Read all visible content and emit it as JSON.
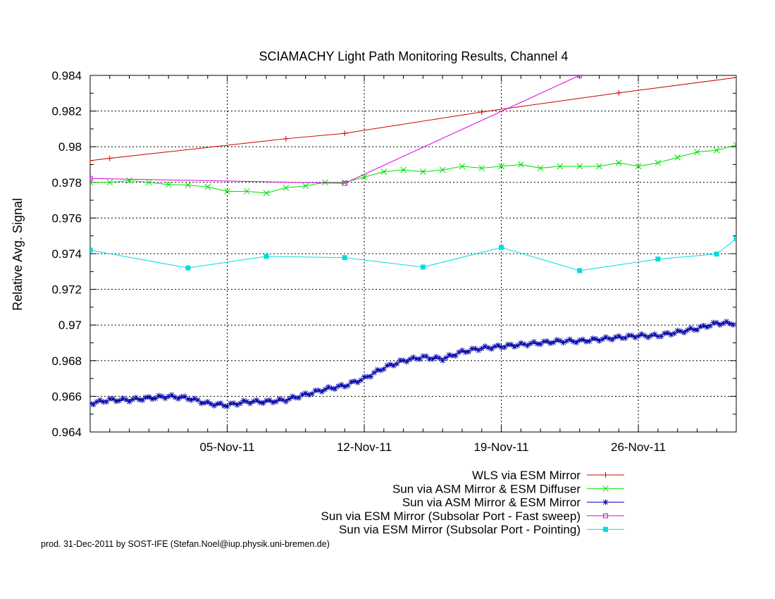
{
  "chart_data": {
    "type": "line",
    "title": "SCIAMACHY Light Path Monitoring Results, Channel 4",
    "ylabel": "Relative Avg. Signal",
    "xlabel": "",
    "x_axis": {
      "start": "2011-10-29",
      "end": "2011-12-01",
      "ticks": [
        {
          "date": "2011-11-05",
          "label": "05-Nov-11"
        },
        {
          "date": "2011-11-12",
          "label": "12-Nov-11"
        },
        {
          "date": "2011-11-19",
          "label": "19-Nov-11"
        },
        {
          "date": "2011-11-26",
          "label": "26-Nov-11"
        }
      ],
      "minor_ticks": [
        "2011-10-29",
        "2011-10-30",
        "2011-10-31",
        "2011-11-01",
        "2011-11-02",
        "2011-11-03",
        "2011-11-04",
        "2011-11-06",
        "2011-11-07",
        "2011-11-08",
        "2011-11-09",
        "2011-11-10",
        "2011-11-11",
        "2011-11-13",
        "2011-11-14",
        "2011-11-15",
        "2011-11-16",
        "2011-11-17",
        "2011-11-18",
        "2011-11-20",
        "2011-11-21",
        "2011-11-22",
        "2011-11-23",
        "2011-11-24",
        "2011-11-25",
        "2011-11-27",
        "2011-11-28",
        "2011-11-29",
        "2011-11-30"
      ]
    },
    "y_axis": {
      "min": 0.964,
      "max": 0.984,
      "ticks": [
        {
          "value": 0.964,
          "label": "0.964"
        },
        {
          "value": 0.966,
          "label": "0.966"
        },
        {
          "value": 0.968,
          "label": "0.968"
        },
        {
          "value": 0.97,
          "label": "0.97"
        },
        {
          "value": 0.972,
          "label": "0.972"
        },
        {
          "value": 0.974,
          "label": "0.974"
        },
        {
          "value": 0.976,
          "label": "0.976"
        },
        {
          "value": 0.978,
          "label": "0.978"
        },
        {
          "value": 0.98,
          "label": "0.98"
        },
        {
          "value": 0.982,
          "label": "0.982"
        },
        {
          "value": 0.984,
          "label": "0.984"
        }
      ],
      "minor_step": 0.001
    },
    "grid": true,
    "legend_position": "bottom-right",
    "series": [
      {
        "name": "WLS via ESM Mirror",
        "color": "#cc0000",
        "marker": "plus",
        "x": [
          "2011-10-29",
          "2011-10-30",
          "2011-11-08",
          "2011-11-11",
          "2011-11-18",
          "2011-11-25",
          "2011-12-01"
        ],
        "y": [
          0.97922,
          0.97935,
          0.98045,
          0.98075,
          0.98195,
          0.98302,
          0.98388
        ]
      },
      {
        "name": "Sun via ASM Mirror & ESM Diffuser",
        "color": "#00dd00",
        "marker": "cross",
        "x": [
          "2011-10-29",
          "2011-10-30",
          "2011-10-31",
          "2011-11-01",
          "2011-11-02",
          "2011-11-03",
          "2011-11-04",
          "2011-11-05",
          "2011-11-06",
          "2011-11-07",
          "2011-11-08",
          "2011-11-09",
          "2011-11-10",
          "2011-11-11",
          "2011-11-12",
          "2011-11-13",
          "2011-11-14",
          "2011-11-15",
          "2011-11-16",
          "2011-11-17",
          "2011-11-18",
          "2011-11-19",
          "2011-11-20",
          "2011-11-21",
          "2011-11-22",
          "2011-11-23",
          "2011-11-24",
          "2011-11-25",
          "2011-11-26",
          "2011-11-27",
          "2011-11-28",
          "2011-11-29",
          "2011-11-30",
          "2011-12-01"
        ],
        "y": [
          0.978,
          0.978,
          0.9781,
          0.978,
          0.97788,
          0.97785,
          0.97775,
          0.9775,
          0.9775,
          0.9774,
          0.9777,
          0.9778,
          0.978,
          0.978,
          0.9783,
          0.9786,
          0.9787,
          0.9786,
          0.9787,
          0.9789,
          0.9788,
          0.9789,
          0.979,
          0.9788,
          0.9789,
          0.9789,
          0.9789,
          0.9791,
          0.9789,
          0.9791,
          0.9794,
          0.9797,
          0.9798,
          0.9801
        ]
      },
      {
        "name": "Sun via ASM Mirror & ESM Mirror",
        "color": "#0000aa",
        "marker": "star",
        "x": [
          "2011-10-29",
          "2011-10-30",
          "2011-10-31",
          "2011-11-01",
          "2011-11-02",
          "2011-11-03",
          "2011-11-04",
          "2011-11-05",
          "2011-11-06",
          "2011-11-07",
          "2011-11-08",
          "2011-11-09",
          "2011-11-10",
          "2011-11-11",
          "2011-11-12",
          "2011-11-13",
          "2011-11-14",
          "2011-11-15",
          "2011-11-16",
          "2011-11-17",
          "2011-11-18",
          "2011-11-19",
          "2011-11-20",
          "2011-11-21",
          "2011-11-22",
          "2011-11-23",
          "2011-11-24",
          "2011-11-25",
          "2011-11-26",
          "2011-11-27",
          "2011-11-28",
          "2011-11-29",
          "2011-11-30",
          "2011-12-01"
        ],
        "y": [
          0.9656,
          0.9658,
          0.9658,
          0.9659,
          0.966,
          0.9659,
          0.9656,
          0.9655,
          0.9657,
          0.9657,
          0.9658,
          0.9661,
          0.9664,
          0.9666,
          0.967,
          0.9676,
          0.968,
          0.9682,
          0.9681,
          0.9685,
          0.9687,
          0.9688,
          0.9689,
          0.969,
          0.9691,
          0.9691,
          0.9692,
          0.9693,
          0.9694,
          0.9694,
          0.9696,
          0.9698,
          0.9701,
          0.9701
        ]
      },
      {
        "name": "Sun via ESM Mirror (Subsolar Port - Fast sweep)",
        "color": "#dd00dd",
        "marker": "square",
        "x": [
          "2011-10-29",
          "2011-11-11",
          "2011-11-23"
        ],
        "y": [
          0.97822,
          0.97795,
          0.984
        ]
      },
      {
        "name": "Sun via ESM Mirror (Subsolar Port - Pointing)",
        "color": "#00dddd",
        "marker": "filled-square",
        "x": [
          "2011-10-29",
          "2011-11-03",
          "2011-11-07",
          "2011-11-11",
          "2011-11-15",
          "2011-11-19",
          "2011-11-23",
          "2011-11-27",
          "2011-11-30",
          "2011-12-01"
        ],
        "y": [
          0.9742,
          0.9732,
          0.97385,
          0.97378,
          0.97325,
          0.97435,
          0.97305,
          0.9737,
          0.97398,
          0.97485
        ]
      }
    ],
    "footer": "prod. 31-Dec-2011 by SOST-IFE (Stefan.Noel@iup.physik.uni-bremen.de)"
  }
}
